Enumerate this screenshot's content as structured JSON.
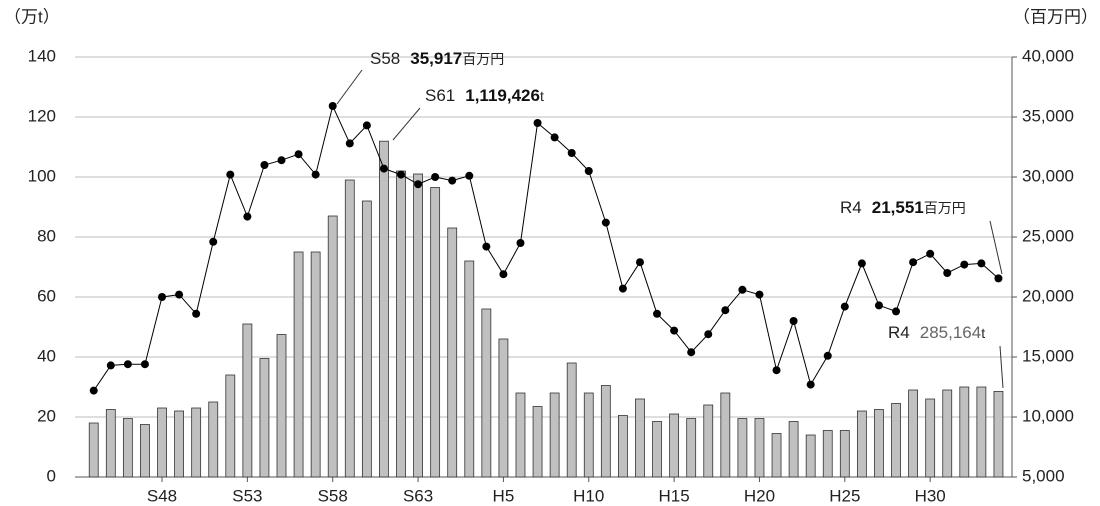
{
  "chart_data": {
    "type": "bar-line",
    "y_axis_title": "（万t）",
    "y2_axis_title": "（百万円）",
    "categories": [
      null,
      null,
      null,
      null,
      "S48",
      null,
      null,
      null,
      null,
      "S53",
      null,
      null,
      null,
      null,
      "S58",
      null,
      null,
      null,
      null,
      "S63",
      null,
      null,
      null,
      null,
      "H5",
      null,
      null,
      null,
      null,
      "H10",
      null,
      null,
      null,
      null,
      "H15",
      null,
      null,
      null,
      null,
      "H20",
      null,
      null,
      null,
      null,
      "H25",
      null,
      null,
      null,
      null,
      "H30",
      null,
      null,
      null,
      null
    ],
    "series": [
      {
        "name": "万t",
        "type": "bar",
        "color": "#c0c0c0",
        "values": [
          18,
          22.5,
          19.5,
          17.5,
          23,
          22,
          23,
          25,
          34,
          51,
          39.5,
          47.5,
          75,
          75,
          87,
          99,
          92,
          111.9426,
          102,
          101,
          96.5,
          83,
          72,
          56,
          46,
          28,
          23.5,
          28,
          38,
          28,
          30.5,
          20.5,
          26,
          18.5,
          21,
          19.5,
          24,
          28,
          19.5,
          19.5,
          14.5,
          18.5,
          14,
          15.5,
          15.5,
          22,
          22.5,
          24.5,
          29,
          26,
          29,
          30,
          30,
          28.5164
        ]
      },
      {
        "name": "百万円",
        "type": "line",
        "axis": "y2",
        "color": "#000000",
        "values": [
          12200,
          14300,
          14400,
          14400,
          20000,
          20200,
          18600,
          24600,
          30200,
          26700,
          31000,
          31400,
          31900,
          30200,
          35917,
          32800,
          34300,
          30700,
          30200,
          29400,
          30000,
          29700,
          30100,
          24200,
          21900,
          24500,
          34500,
          33300,
          32000,
          30500,
          26200,
          20700,
          22900,
          18600,
          17200,
          15400,
          16900,
          18900,
          20600,
          20200,
          13900,
          18000,
          12700,
          15100,
          19200,
          22800,
          19300,
          18800,
          22900,
          23600,
          22000,
          22700,
          22800,
          21551
        ]
      }
    ],
    "ylim": [
      0,
      140
    ],
    "yticks": [
      0,
      20,
      40,
      60,
      80,
      100,
      120,
      140
    ],
    "y2lim": [
      5000,
      40000
    ],
    "y2ticks": [
      {
        "value": 5000,
        "label": "5,000"
      },
      {
        "value": 10000,
        "label": "10,000"
      },
      {
        "value": 15000,
        "label": "15,000"
      },
      {
        "value": 20000,
        "label": "20,000"
      },
      {
        "value": 25000,
        "label": "25,000"
      },
      {
        "value": 30000,
        "label": "30,000"
      },
      {
        "value": 35000,
        "label": "35,000"
      },
      {
        "value": 40000,
        "label": "40,000"
      }
    ],
    "grid": true,
    "annotations": [
      {
        "label": "S58",
        "value": "35,917",
        "unit": "百万円"
      },
      {
        "label": "S61",
        "value": "1,119,426",
        "unit": "t"
      },
      {
        "label": "R4",
        "value": "21,551",
        "unit": "百万円"
      },
      {
        "label": "R4",
        "value": "285,164",
        "unit": "t"
      }
    ]
  }
}
